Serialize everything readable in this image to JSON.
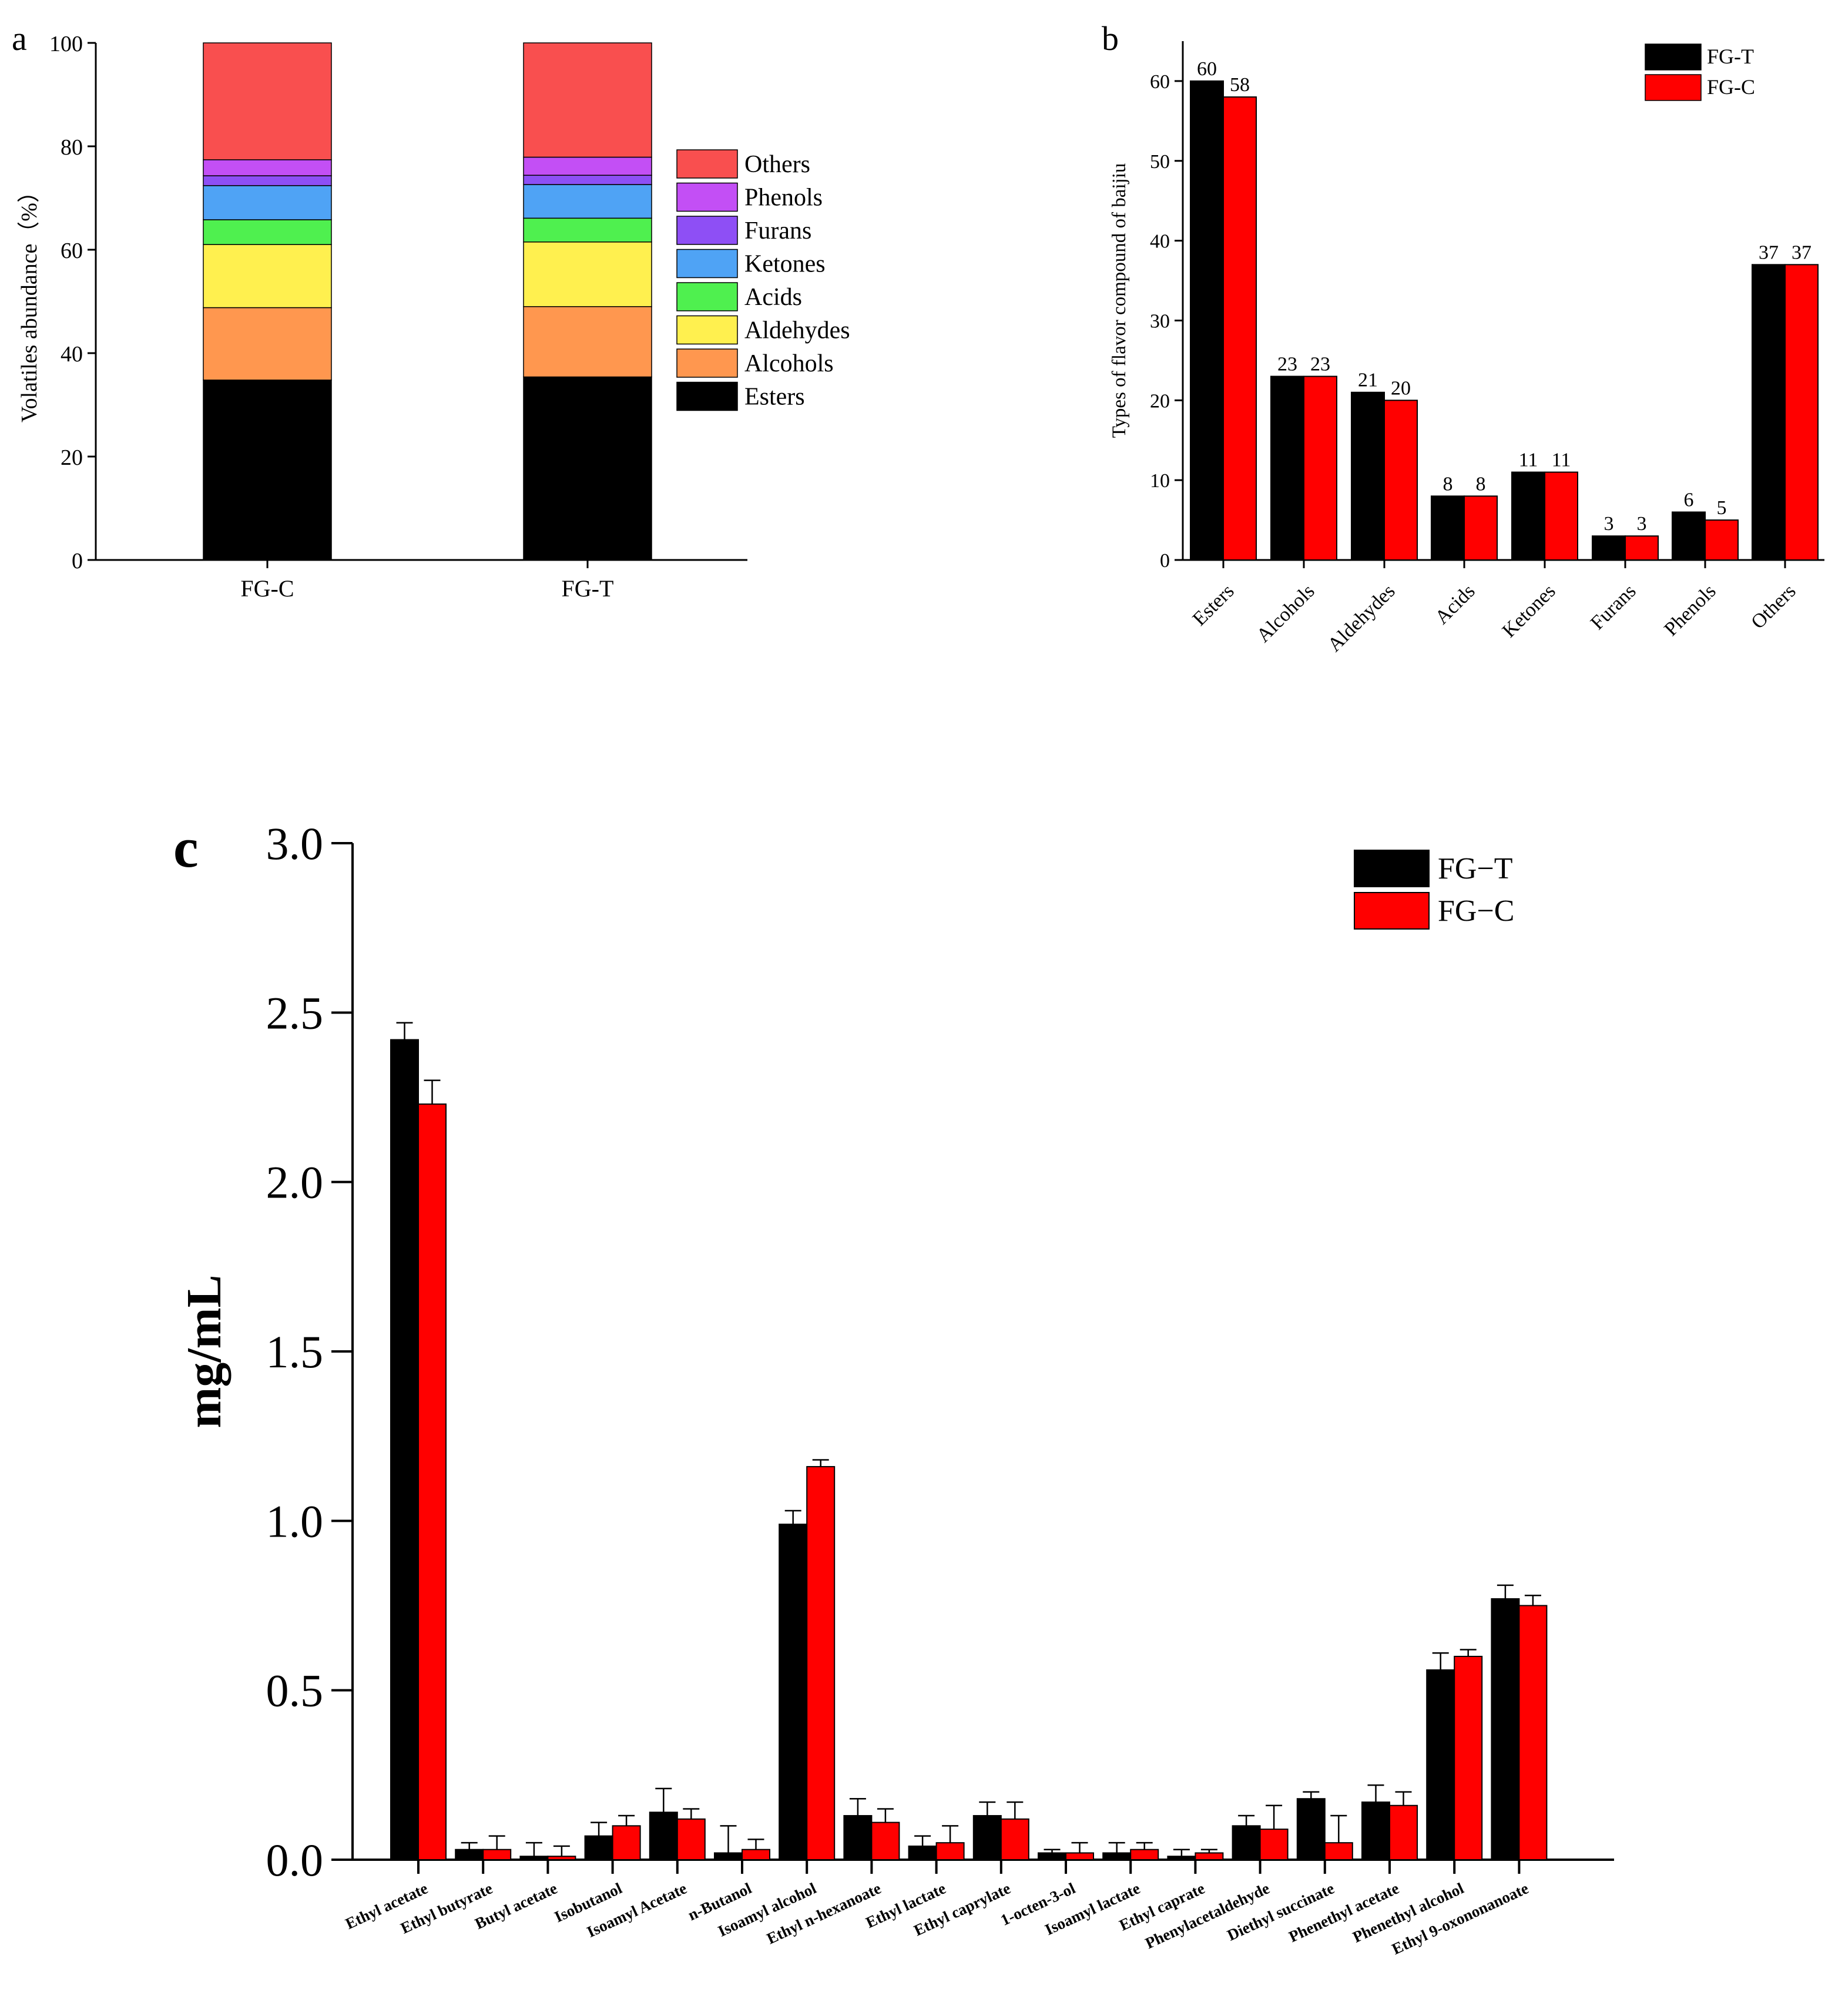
{
  "panels": {
    "a": "a",
    "b": "b",
    "c": "c"
  },
  "chart_data": [
    {
      "id": "a",
      "type": "bar",
      "stacked": true,
      "categories": [
        "FG-C",
        "FG-T"
      ],
      "series": [
        {
          "name": "Esters",
          "color": "#000000",
          "values": [
            34.8,
            35.4
          ]
        },
        {
          "name": "Alcohols",
          "color": "#FF974F",
          "values": [
            14.0,
            13.6
          ]
        },
        {
          "name": "Aldehydes",
          "color": "#FFF04F",
          "values": [
            12.2,
            12.5
          ]
        },
        {
          "name": "Acids",
          "color": "#4FF04F",
          "values": [
            4.8,
            4.6
          ]
        },
        {
          "name": "Ketones",
          "color": "#4FA3F5",
          "values": [
            6.6,
            6.5
          ]
        },
        {
          "name": "Furans",
          "color": "#8E4FF5",
          "values": [
            1.9,
            1.8
          ]
        },
        {
          "name": "Phenols",
          "color": "#C34FF5",
          "values": [
            3.1,
            3.5
          ]
        },
        {
          "name": "Others",
          "color": "#F94F4F",
          "values": [
            22.6,
            22.1
          ]
        }
      ],
      "xlabel": "",
      "ylabel": "Volatiles abundance（%）",
      "ylim": [
        0,
        100
      ],
      "yticks": [
        0,
        20,
        40,
        60,
        80,
        100
      ],
      "legend_placement": "right",
      "legend_order": [
        "Others",
        "Phenols",
        "Furans",
        "Ketones",
        "Acids",
        "Aldehydes",
        "Alcohols",
        "Esters"
      ]
    },
    {
      "id": "b",
      "type": "bar",
      "categories": [
        "Esters",
        "Alcohols",
        "Aldehydes",
        "Acids",
        "Ketones",
        "Furans",
        "Phenols",
        "Others"
      ],
      "series": [
        {
          "name": "FG-T",
          "color": "#000000",
          "values": [
            60,
            23,
            21,
            8,
            11,
            3,
            6,
            37
          ]
        },
        {
          "name": "FG-C",
          "color": "#FF0000",
          "values": [
            58,
            23,
            20,
            8,
            11,
            3,
            5,
            37
          ]
        }
      ],
      "xlabel": "",
      "ylabel": "Types of flavor compound of baijiu",
      "ylim": [
        0,
        65
      ],
      "yticks": [
        0,
        10,
        20,
        30,
        40,
        50,
        60
      ],
      "data_labels": true,
      "legend_placement": "top-right"
    },
    {
      "id": "c",
      "type": "bar",
      "categories": [
        "Ethyl acetate",
        "Ethyl butyrate",
        "Butyl acetate",
        "Isobutanol",
        "Isoamyl Acetate",
        "n-Butanol",
        "Isoamyl alcohol",
        "Ethyl n-hexanoate",
        "Ethyl lactate",
        "Ethyl caprylate",
        "1-octen-3-ol",
        "Isoamyl lactate",
        "Ethyl caprate",
        "Phenylacetaldehyde",
        "Diethyl succinate",
        "Phenethyl acetate",
        "Phenethyl alcohol",
        "Ethyl 9-oxononanoate"
      ],
      "series": [
        {
          "name": "FG−T",
          "color": "#000000",
          "values": [
            2.42,
            0.03,
            0.01,
            0.07,
            0.14,
            0.02,
            0.99,
            0.13,
            0.04,
            0.13,
            0.02,
            0.02,
            0.01,
            0.1,
            0.18,
            0.17,
            0.56,
            0.77
          ],
          "errors": [
            0.05,
            0.02,
            0.04,
            0.04,
            0.07,
            0.08,
            0.04,
            0.05,
            0.03,
            0.04,
            0.01,
            0.03,
            0.02,
            0.03,
            0.02,
            0.05,
            0.05,
            0.04
          ]
        },
        {
          "name": "FG−C",
          "color": "#FF0000",
          "values": [
            2.23,
            0.03,
            0.01,
            0.1,
            0.12,
            0.03,
            1.16,
            0.11,
            0.05,
            0.12,
            0.02,
            0.03,
            0.02,
            0.09,
            0.05,
            0.16,
            0.6,
            0.75
          ],
          "errors": [
            0.07,
            0.04,
            0.03,
            0.03,
            0.03,
            0.03,
            0.02,
            0.04,
            0.05,
            0.05,
            0.03,
            0.02,
            0.01,
            0.07,
            0.08,
            0.04,
            0.02,
            0.03
          ]
        }
      ],
      "xlabel": "",
      "ylabel": "mg/mL",
      "ylim": [
        0,
        3.0
      ],
      "yticks": [
        "0.0",
        "0.5",
        "1.0",
        "1.5",
        "2.0",
        "2.5",
        "3.0"
      ],
      "legend_placement": "top-right"
    }
  ]
}
